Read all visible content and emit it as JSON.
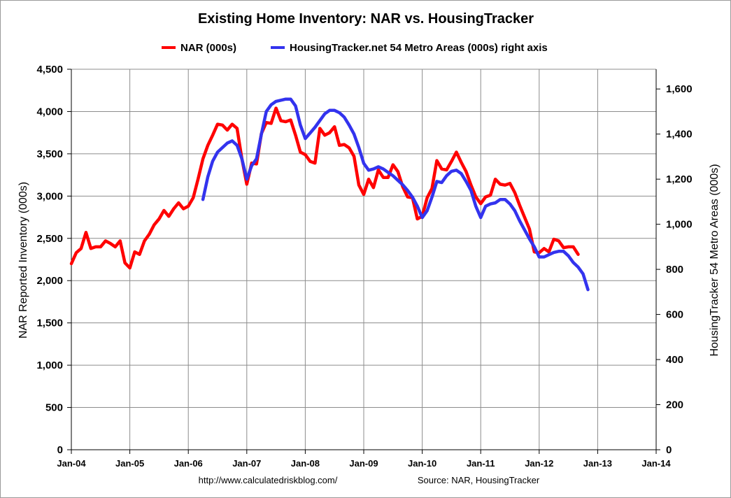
{
  "chart_data": {
    "type": "line",
    "title": "Existing Home Inventory: NAR vs. HousingTracker",
    "ylabel": "NAR Reported Inventory (000s)",
    "y2label": "HousingTracker 54 Metro Areas (000s)",
    "ylim": [
      0,
      4500
    ],
    "y2lim": [
      0,
      1687.5
    ],
    "yticks": [
      "0",
      "500",
      "1,000",
      "1,500",
      "2,000",
      "2,500",
      "3,000",
      "3,500",
      "4,000",
      "4,500"
    ],
    "y2ticks": [
      "0",
      "200",
      "400",
      "600",
      "800",
      "1,000",
      "1,200",
      "1,400",
      "1,600"
    ],
    "xticks": [
      "Jan-04",
      "Jan-05",
      "Jan-06",
      "Jan-07",
      "Jan-08",
      "Jan-09",
      "Jan-10",
      "Jan-11",
      "Jan-12",
      "Jan-13",
      "Jan-14"
    ],
    "grid": true,
    "legend_position": "top",
    "footer_left": "http://www.calculatedriskblog.com/",
    "footer_right": "Source: NAR, HousingTracker",
    "series": [
      {
        "name": "NAR (000s)",
        "axis": "left",
        "color": "#ff0000",
        "x": [
          "2004-01",
          "2004-02",
          "2004-03",
          "2004-04",
          "2004-05",
          "2004-06",
          "2004-07",
          "2004-08",
          "2004-09",
          "2004-10",
          "2004-11",
          "2004-12",
          "2005-01",
          "2005-02",
          "2005-03",
          "2005-04",
          "2005-05",
          "2005-06",
          "2005-07",
          "2005-08",
          "2005-09",
          "2005-10",
          "2005-11",
          "2005-12",
          "2006-01",
          "2006-02",
          "2006-03",
          "2006-04",
          "2006-05",
          "2006-06",
          "2006-07",
          "2006-08",
          "2006-09",
          "2006-10",
          "2006-11",
          "2006-12",
          "2007-01",
          "2007-02",
          "2007-03",
          "2007-04",
          "2007-05",
          "2007-06",
          "2007-07",
          "2007-08",
          "2007-09",
          "2007-10",
          "2007-11",
          "2007-12",
          "2008-01",
          "2008-02",
          "2008-03",
          "2008-04",
          "2008-05",
          "2008-06",
          "2008-07",
          "2008-08",
          "2008-09",
          "2008-10",
          "2008-11",
          "2008-12",
          "2009-01",
          "2009-02",
          "2009-03",
          "2009-04",
          "2009-05",
          "2009-06",
          "2009-07",
          "2009-08",
          "2009-09",
          "2009-10",
          "2009-11",
          "2009-12",
          "2010-01",
          "2010-02",
          "2010-03",
          "2010-04",
          "2010-05",
          "2010-06",
          "2010-07",
          "2010-08",
          "2010-09",
          "2010-10",
          "2010-11",
          "2010-12",
          "2011-01",
          "2011-02",
          "2011-03",
          "2011-04",
          "2011-05",
          "2011-06",
          "2011-07",
          "2011-08",
          "2011-09",
          "2011-10",
          "2011-11",
          "2011-12",
          "2012-01",
          "2012-02",
          "2012-03",
          "2012-04",
          "2012-05",
          "2012-06",
          "2012-07",
          "2012-08",
          "2012-09"
        ],
        "values": [
          2200,
          2330,
          2380,
          2570,
          2380,
          2400,
          2400,
          2470,
          2440,
          2400,
          2470,
          2210,
          2150,
          2340,
          2310,
          2470,
          2550,
          2660,
          2730,
          2830,
          2760,
          2850,
          2920,
          2850,
          2880,
          2980,
          3200,
          3440,
          3600,
          3720,
          3850,
          3840,
          3780,
          3850,
          3800,
          3440,
          3140,
          3390,
          3380,
          3740,
          3870,
          3860,
          4040,
          3890,
          3880,
          3900,
          3720,
          3520,
          3490,
          3410,
          3390,
          3800,
          3720,
          3750,
          3820,
          3600,
          3610,
          3570,
          3470,
          3130,
          3020,
          3200,
          3100,
          3310,
          3220,
          3220,
          3370,
          3290,
          3110,
          2990,
          2980,
          2730,
          2760,
          2980,
          3090,
          3420,
          3320,
          3310,
          3410,
          3520,
          3400,
          3290,
          3130,
          2990,
          2910,
          2990,
          3010,
          3200,
          3140,
          3130,
          3150,
          3040,
          2890,
          2750,
          2610,
          2340,
          2330,
          2380,
          2340,
          2490,
          2470,
          2390,
          2400,
          2400,
          2310
        ]
      },
      {
        "name": "HousingTracker.net 54 Metro Areas (000s) right axis",
        "axis": "right",
        "color": "#3333ee",
        "x": [
          "2006-04",
          "2006-05",
          "2006-06",
          "2006-07",
          "2006-08",
          "2006-09",
          "2006-10",
          "2006-11",
          "2006-12",
          "2007-01",
          "2007-02",
          "2007-03",
          "2007-04",
          "2007-05",
          "2007-06",
          "2007-07",
          "2007-08",
          "2007-09",
          "2007-10",
          "2007-11",
          "2007-12",
          "2008-01",
          "2008-02",
          "2008-03",
          "2008-04",
          "2008-05",
          "2008-06",
          "2008-07",
          "2008-08",
          "2008-09",
          "2008-10",
          "2008-11",
          "2008-12",
          "2009-01",
          "2009-02",
          "2009-03",
          "2009-04",
          "2009-05",
          "2009-06",
          "2009-07",
          "2009-08",
          "2009-09",
          "2009-10",
          "2009-11",
          "2009-12",
          "2010-01",
          "2010-02",
          "2010-03",
          "2010-04",
          "2010-05",
          "2010-06",
          "2010-07",
          "2010-08",
          "2010-09",
          "2010-10",
          "2010-11",
          "2010-12",
          "2011-01",
          "2011-02",
          "2011-03",
          "2011-04",
          "2011-05",
          "2011-06",
          "2011-07",
          "2011-08",
          "2011-09",
          "2011-10",
          "2011-11",
          "2011-12",
          "2012-01",
          "2012-02",
          "2012-03",
          "2012-04",
          "2012-05",
          "2012-06",
          "2012-07",
          "2012-08",
          "2012-09",
          "2012-10",
          "2012-11"
        ],
        "values": [
          1110,
          1210,
          1280,
          1320,
          1340,
          1360,
          1370,
          1350,
          1290,
          1200,
          1260,
          1290,
          1400,
          1500,
          1530,
          1545,
          1550,
          1555,
          1555,
          1525,
          1440,
          1380,
          1405,
          1430,
          1460,
          1490,
          1505,
          1505,
          1495,
          1475,
          1440,
          1400,
          1340,
          1270,
          1240,
          1245,
          1255,
          1245,
          1230,
          1215,
          1195,
          1175,
          1150,
          1120,
          1080,
          1030,
          1060,
          1120,
          1190,
          1185,
          1215,
          1235,
          1240,
          1225,
          1190,
          1150,
          1080,
          1030,
          1080,
          1090,
          1095,
          1110,
          1110,
          1090,
          1060,
          1015,
          975,
          935,
          900,
          855,
          855,
          865,
          875,
          880,
          880,
          860,
          830,
          810,
          780,
          710
        ]
      }
    ]
  }
}
